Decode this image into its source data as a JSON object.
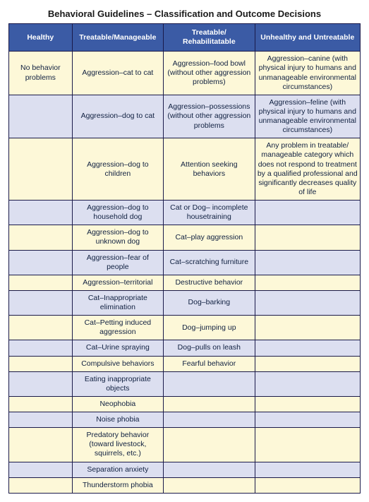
{
  "title": "Behavioral Guidelines – Classification and Outcome Decisions",
  "columns": [
    "Healthy",
    "Treatable/Manageable",
    "Treatable/\nRehabilitatable",
    "Unhealthy and Untreatable"
  ],
  "row_colors": {
    "alt_a": "#fdf8d8",
    "alt_b": "#dcdff0"
  },
  "header_bg": "#3b5ba5",
  "header_fg": "#ffffff",
  "border_color": "#1a1a4a",
  "rows": [
    {
      "band": "a",
      "cells": [
        "No behavior problems",
        "Aggression–cat to cat",
        "Aggression–food bowl (without other aggression problems)",
        "Aggression–canine\n(with physical injury to humans and unmanageable environmental circumstances)"
      ]
    },
    {
      "band": "b",
      "cells": [
        "",
        "Aggression–dog to cat",
        "Aggression–possessions (without other aggression problems",
        "Aggression–feline\n(with physical injury to humans and unmanageable environmental circumstances)"
      ]
    },
    {
      "band": "a",
      "cells": [
        "",
        "Aggression–dog to children",
        "Attention seeking behaviors",
        "Any problem in treatable/ manageable category which does not respond to treatment by a qualified professional and significantly decreases quality of life"
      ]
    },
    {
      "band": "b",
      "cells": [
        "",
        "Aggression–dog to household dog",
        "Cat or Dog–\nincomplete housetraining",
        ""
      ]
    },
    {
      "band": "a",
      "cells": [
        "",
        "Aggression–dog to unknown dog",
        "Cat–play aggression",
        ""
      ]
    },
    {
      "band": "b",
      "cells": [
        "",
        "Aggression–fear of people",
        "Cat–scratching furniture",
        ""
      ]
    },
    {
      "band": "a",
      "cells": [
        "",
        "Aggression–territorial",
        "Destructive behavior",
        ""
      ]
    },
    {
      "band": "b",
      "cells": [
        "",
        "Cat–Inappropriate elimination",
        "Dog–barking",
        ""
      ]
    },
    {
      "band": "a",
      "cells": [
        "",
        "Cat–Petting induced aggression",
        "Dog–jumping up",
        ""
      ]
    },
    {
      "band": "b",
      "cells": [
        "",
        "Cat–Urine spraying",
        "Dog–pulls on leash",
        ""
      ]
    },
    {
      "band": "a",
      "cells": [
        "",
        "Compulsive behaviors",
        "Fearful behavior",
        ""
      ]
    },
    {
      "band": "b",
      "cells": [
        "",
        "Eating inappropriate objects",
        "",
        ""
      ]
    },
    {
      "band": "a",
      "cells": [
        "",
        "Neophobia",
        "",
        ""
      ]
    },
    {
      "band": "b",
      "cells": [
        "",
        "Noise phobia",
        "",
        ""
      ]
    },
    {
      "band": "a",
      "cells": [
        "",
        "Predatory behavior (toward livestock, squirrels, etc.)",
        "",
        ""
      ]
    },
    {
      "band": "b",
      "cells": [
        "",
        "Separation anxiety",
        "",
        ""
      ]
    },
    {
      "band": "a",
      "cells": [
        "",
        "Thunderstorm phobia",
        "",
        ""
      ]
    }
  ]
}
